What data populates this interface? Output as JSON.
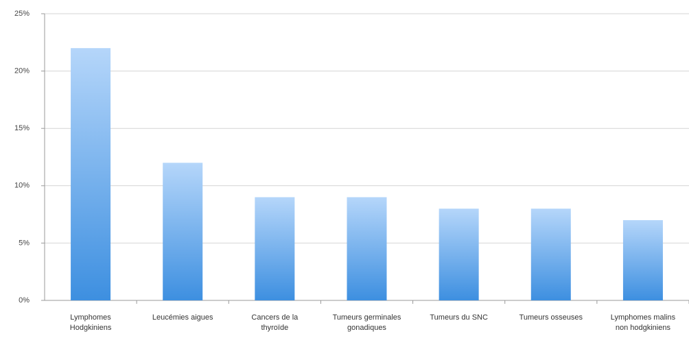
{
  "chart_data": {
    "type": "bar",
    "categories": [
      "Lymphomes Hodgkiniens",
      "Leucémies aigues",
      "Cancers de la thyroïde",
      "Tumeurs germinales gonadiques",
      "Tumeurs du SNC",
      "Tumeurs osseuses",
      "Lymphomes malins non hodgkiniens"
    ],
    "values": [
      22,
      12,
      9,
      9,
      8,
      8,
      7
    ],
    "color": "#3d8fe0",
    "ylim": [
      0,
      25
    ],
    "yticks": [
      {
        "value": 0,
        "label": "0%"
      },
      {
        "value": 5,
        "label": "5%"
      },
      {
        "value": 10,
        "label": "10%"
      },
      {
        "value": 15,
        "label": "15%"
      },
      {
        "value": 20,
        "label": "20%"
      },
      {
        "value": 25,
        "label": "25%"
      }
    ],
    "grid": true
  }
}
